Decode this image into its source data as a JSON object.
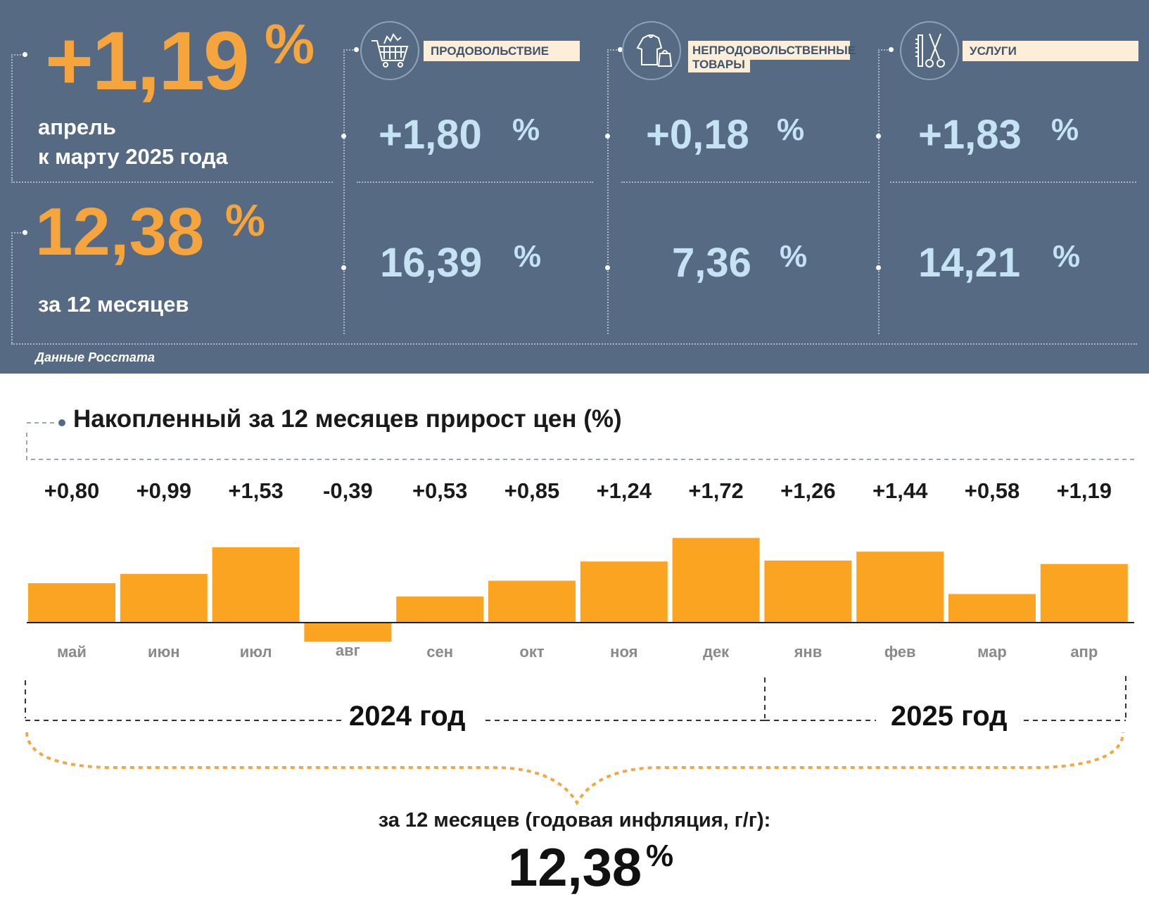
{
  "header": {
    "monthly_value": "+1,19",
    "pct": "%",
    "monthly_caption_1": "апрель",
    "monthly_caption_2": "к марту 2025 года",
    "annual_value": "12,38",
    "annual_caption": "за 12 месяцев",
    "source": "Данные Росстата"
  },
  "categories": [
    {
      "label": "ПРОДОВОЛЬСТВИЕ",
      "monthly": "+1,80",
      "annual": "16,39",
      "icon": "shopping-cart-icon"
    },
    {
      "label": "НЕПРОДОВОЛЬСТВЕННЫЕ ТОВАРЫ",
      "label_1": "НЕПРОДОВОЛЬСТВЕННЫЕ",
      "label_2": "ТОВАРЫ",
      "monthly": "+0,18",
      "annual": "7,36",
      "icon": "clothes-bag-icon"
    },
    {
      "label": "УСЛУГИ",
      "monthly": "+1,83",
      "annual": "14,21",
      "icon": "comb-scissors-icon"
    }
  ],
  "chart_title": "Накопленный за 12 месяцев прирост цен (%)",
  "chart_data": {
    "type": "bar",
    "title": "Накопленный за 12 месяцев прирост цен (%)",
    "categories": [
      "май",
      "июн",
      "июл",
      "авг",
      "сен",
      "окт",
      "ноя",
      "дек",
      "янв",
      "фев",
      "мар",
      "апр"
    ],
    "value_labels": [
      "+0,80",
      "+0,99",
      "+1,53",
      "-0,39",
      "+0,53",
      "+0,85",
      "+1,24",
      "+1,72",
      "+1,26",
      "+1,44",
      "+0,58",
      "+1,19"
    ],
    "values": [
      0.8,
      0.99,
      1.53,
      -0.39,
      0.53,
      0.85,
      1.24,
      1.72,
      1.26,
      1.44,
      0.58,
      1.19
    ],
    "years": [
      "2024 год",
      "2025 год"
    ],
    "bar_color": "#fba422"
  },
  "footer": {
    "caption": "за 12 месяцев (годовая инфляция, г/г):",
    "value": "12,38",
    "pct": "%"
  }
}
